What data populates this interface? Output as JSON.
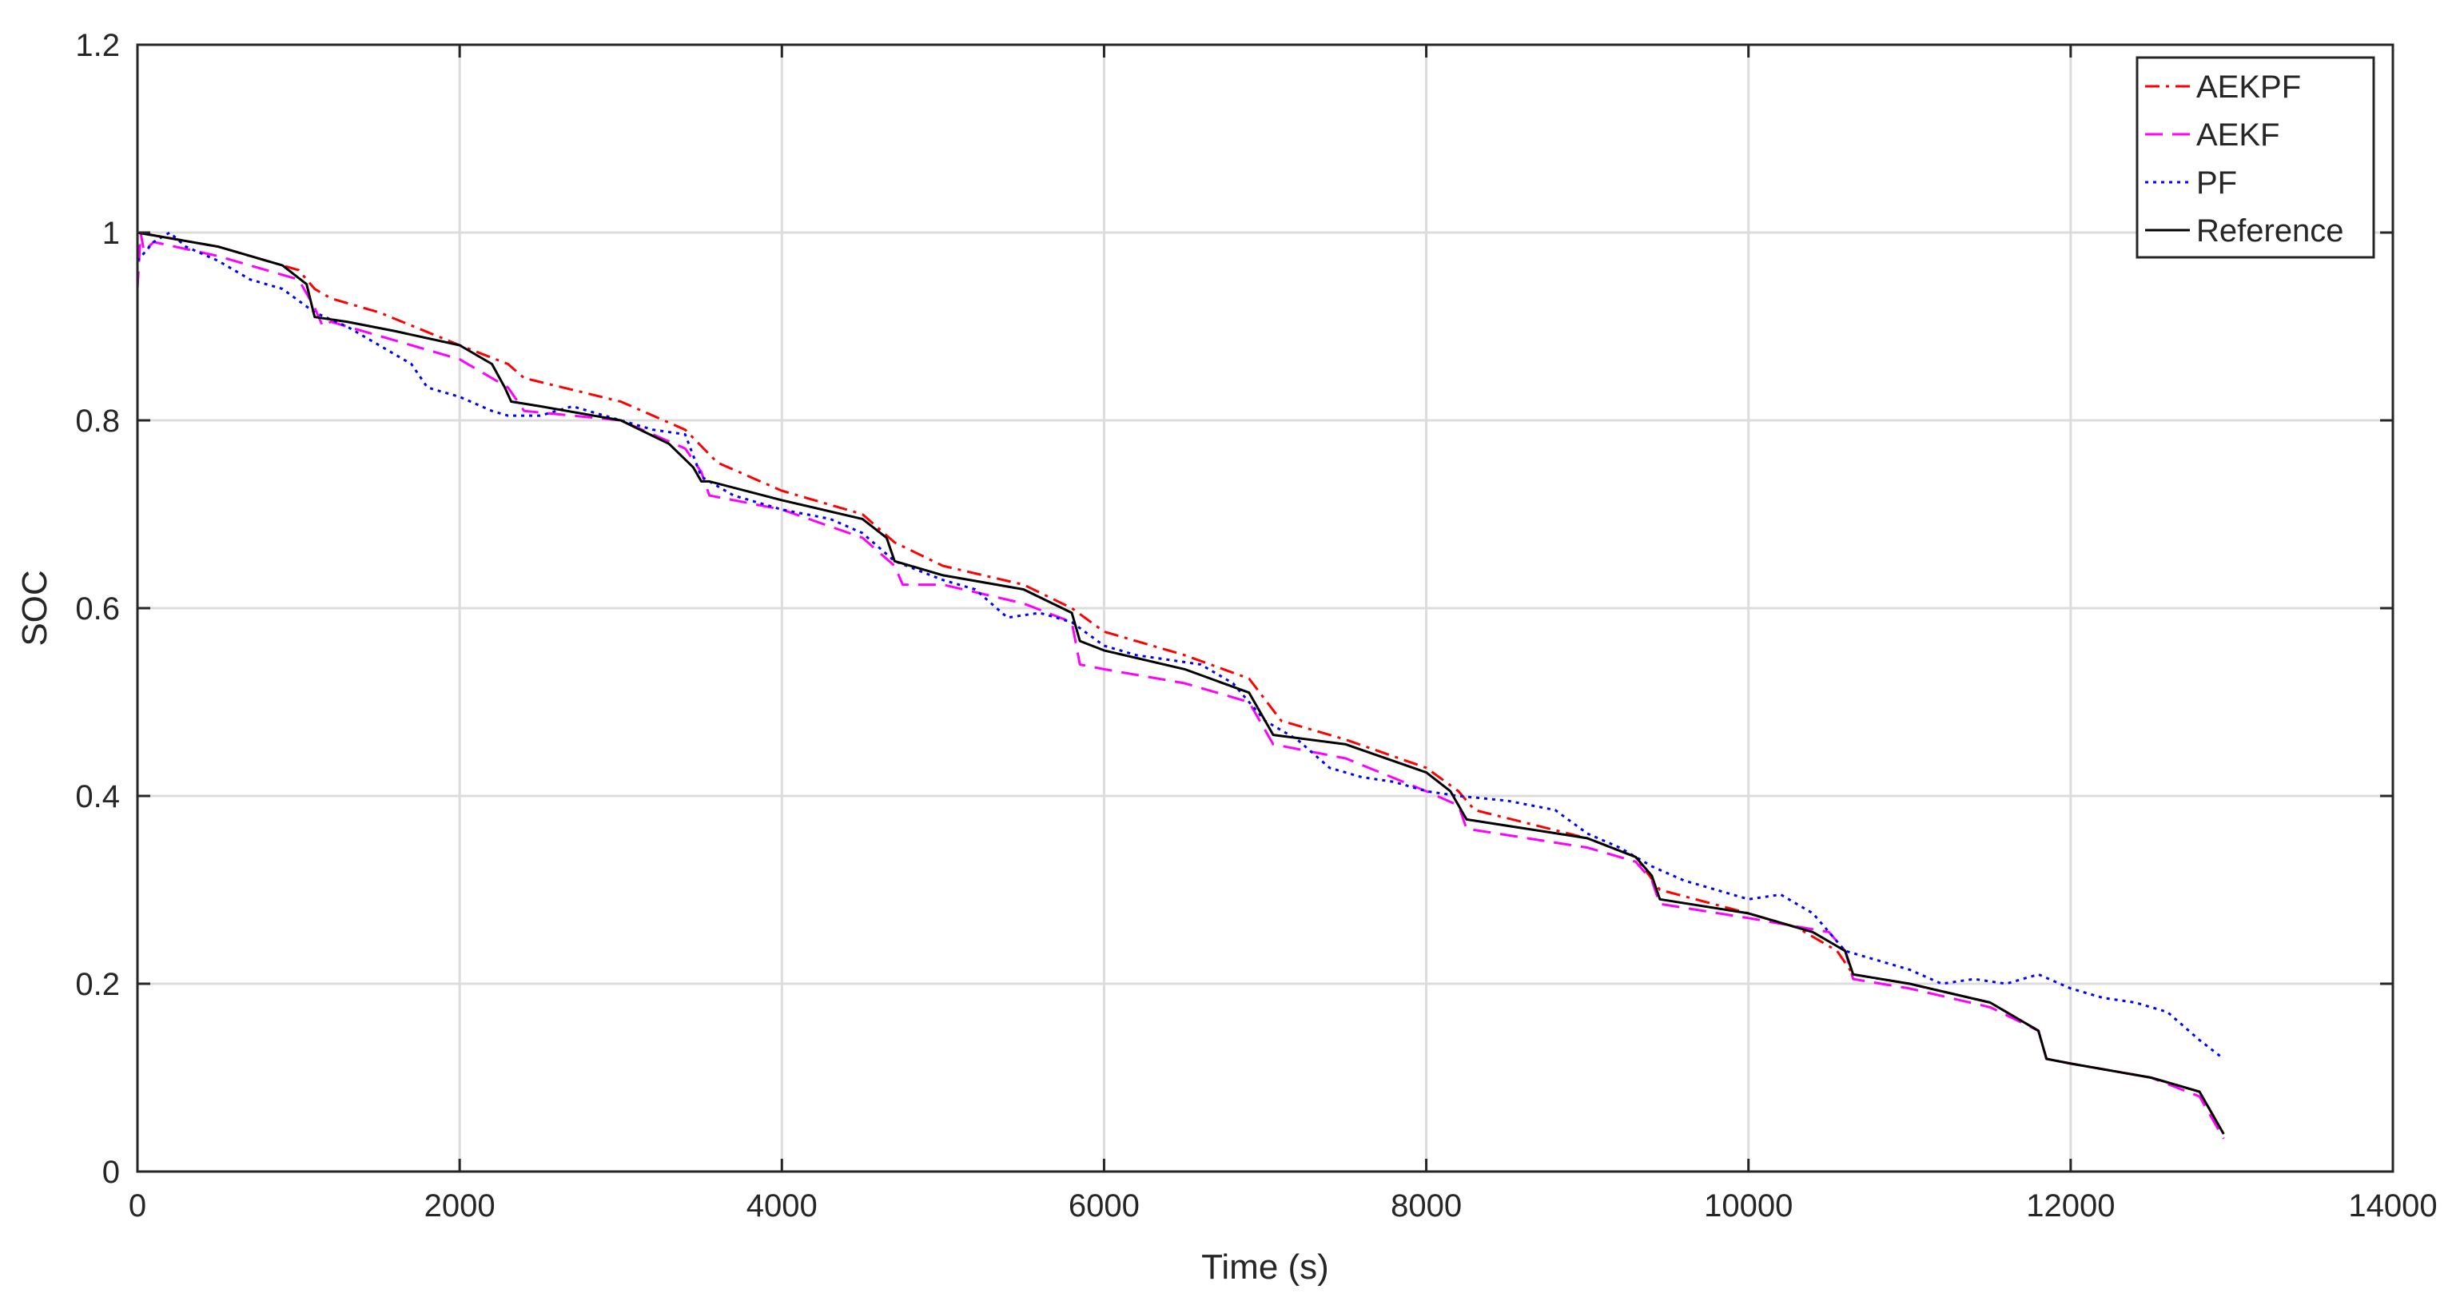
{
  "chart_data": {
    "type": "line",
    "title": "",
    "xlabel": "Time (s)",
    "ylabel": "SOC",
    "xlim": [
      0,
      14000
    ],
    "ylim": [
      0,
      1.2
    ],
    "xticks": [
      0,
      2000,
      4000,
      6000,
      8000,
      10000,
      12000,
      14000
    ],
    "xtick_labels": [
      "0",
      "2000",
      "4000",
      "6000",
      "8000",
      "10000",
      "12000",
      "14000"
    ],
    "yticks": [
      0,
      0.2,
      0.4,
      0.6,
      0.8,
      1.0,
      1.2
    ],
    "ytick_labels": [
      "0",
      "0.2",
      "0.4",
      "0.6",
      "0.8",
      "1",
      "1.2"
    ],
    "grid": true,
    "legend_position": "top-right",
    "series": [
      {
        "name": "AEKPF",
        "color": "#ff0000",
        "dash": "dashdot",
        "x": [
          0,
          500,
          1000,
          1100,
          1200,
          1500,
          2000,
          2300,
          2400,
          3000,
          3400,
          3600,
          4000,
          4500,
          4700,
          5000,
          5500,
          5800,
          6000,
          6500,
          6900,
          7100,
          7500,
          8000,
          8200,
          8300,
          9000,
          9300,
          9450,
          10000,
          10300,
          10550,
          10650,
          11000,
          11500,
          11800,
          11850,
          12000,
          12500,
          12800,
          12950
        ],
        "values": [
          1.0,
          0.985,
          0.96,
          0.94,
          0.93,
          0.915,
          0.88,
          0.86,
          0.845,
          0.82,
          0.79,
          0.755,
          0.725,
          0.7,
          0.67,
          0.645,
          0.625,
          0.6,
          0.575,
          0.55,
          0.525,
          0.48,
          0.46,
          0.43,
          0.405,
          0.385,
          0.355,
          0.335,
          0.3,
          0.275,
          0.26,
          0.235,
          0.21,
          0.2,
          0.18,
          0.15,
          0.12,
          0.115,
          0.1,
          0.085,
          0.04
        ]
      },
      {
        "name": "AEKF",
        "color": "#ff00ff",
        "dash": "dashed",
        "x": [
          0,
          20,
          40,
          100,
          500,
          1000,
          1100,
          1150,
          1200,
          1500,
          2000,
          2300,
          2400,
          3000,
          3400,
          3500,
          3550,
          4000,
          4500,
          4700,
          4750,
          5000,
          5500,
          5800,
          5850,
          6000,
          6500,
          6900,
          7000,
          7050,
          7500,
          8000,
          8200,
          8250,
          9000,
          9300,
          9400,
          9450,
          10000,
          10500,
          10600,
          10650,
          11000,
          11500,
          11800,
          11850,
          12000,
          12500,
          12800,
          12950
        ],
        "values": [
          0.94,
          1.0,
          0.98,
          0.99,
          0.975,
          0.95,
          0.92,
          0.9,
          0.905,
          0.89,
          0.865,
          0.835,
          0.81,
          0.8,
          0.77,
          0.745,
          0.72,
          0.705,
          0.675,
          0.645,
          0.625,
          0.625,
          0.605,
          0.585,
          0.54,
          0.535,
          0.52,
          0.5,
          0.47,
          0.455,
          0.44,
          0.405,
          0.39,
          0.365,
          0.345,
          0.33,
          0.31,
          0.285,
          0.27,
          0.255,
          0.235,
          0.205,
          0.195,
          0.175,
          0.15,
          0.12,
          0.115,
          0.1,
          0.08,
          0.035
        ]
      },
      {
        "name": "PF",
        "color": "#0000ff",
        "dash": "dotted",
        "x": [
          0,
          100,
          200,
          300,
          500,
          700,
          900,
          1100,
          1300,
          1500,
          1700,
          1800,
          2000,
          2200,
          2300,
          2500,
          2700,
          3000,
          3200,
          3400,
          3500,
          3700,
          4000,
          4300,
          4500,
          4700,
          5000,
          5200,
          5400,
          5600,
          5800,
          6000,
          6200,
          6400,
          6600,
          6800,
          7000,
          7200,
          7400,
          7600,
          7800,
          8000,
          8200,
          8500,
          8800,
          9000,
          9200,
          9400,
          9600,
          9800,
          10000,
          10200,
          10400,
          10600,
          10800,
          11000,
          11200,
          11400,
          11600,
          11800,
          12000,
          12200,
          12400,
          12600,
          12800,
          12950
        ],
        "values": [
          0.97,
          0.99,
          1.0,
          0.985,
          0.97,
          0.95,
          0.94,
          0.915,
          0.9,
          0.88,
          0.86,
          0.835,
          0.825,
          0.81,
          0.805,
          0.805,
          0.815,
          0.8,
          0.79,
          0.785,
          0.74,
          0.72,
          0.705,
          0.695,
          0.68,
          0.65,
          0.63,
          0.62,
          0.59,
          0.595,
          0.585,
          0.56,
          0.55,
          0.545,
          0.54,
          0.52,
          0.48,
          0.46,
          0.43,
          0.42,
          0.415,
          0.405,
          0.4,
          0.395,
          0.385,
          0.36,
          0.345,
          0.325,
          0.31,
          0.3,
          0.29,
          0.295,
          0.275,
          0.235,
          0.225,
          0.215,
          0.2,
          0.205,
          0.2,
          0.21,
          0.195,
          0.185,
          0.18,
          0.17,
          0.14,
          0.12
        ]
      },
      {
        "name": "Reference",
        "color": "#000000",
        "dash": "solid",
        "x": [
          0,
          500,
          900,
          1050,
          1100,
          1300,
          1600,
          2000,
          2200,
          2280,
          2320,
          2500,
          3000,
          3300,
          3450,
          3500,
          3550,
          4000,
          4500,
          4650,
          4700,
          5000,
          5500,
          5800,
          5850,
          6000,
          6500,
          6900,
          7000,
          7050,
          7500,
          8000,
          8150,
          8200,
          8250,
          9000,
          9300,
          9400,
          9450,
          10000,
          10400,
          10600,
          10650,
          11000,
          11500,
          11800,
          11850,
          12000,
          12500,
          12800,
          12950
        ],
        "values": [
          1.0,
          0.985,
          0.965,
          0.945,
          0.91,
          0.905,
          0.895,
          0.88,
          0.86,
          0.835,
          0.82,
          0.815,
          0.8,
          0.775,
          0.75,
          0.735,
          0.735,
          0.715,
          0.695,
          0.675,
          0.65,
          0.635,
          0.62,
          0.595,
          0.565,
          0.555,
          0.535,
          0.51,
          0.48,
          0.465,
          0.455,
          0.425,
          0.405,
          0.39,
          0.375,
          0.355,
          0.335,
          0.315,
          0.29,
          0.275,
          0.255,
          0.235,
          0.21,
          0.2,
          0.18,
          0.15,
          0.12,
          0.115,
          0.1,
          0.085,
          0.04
        ]
      }
    ]
  }
}
